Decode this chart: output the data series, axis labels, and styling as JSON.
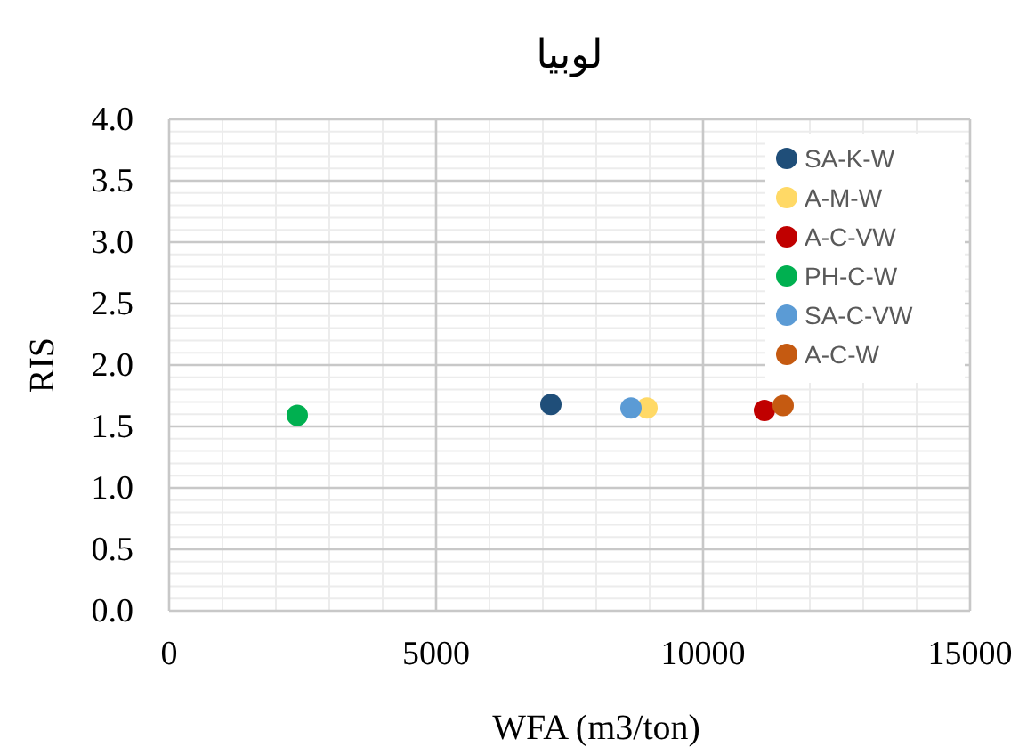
{
  "chart_data": {
    "type": "scatter",
    "title": "لوبيا",
    "xlabel": "WFA (m3/ton)",
    "ylabel": "RIS",
    "xlim": [
      0,
      15000
    ],
    "xticks": [
      0,
      5000,
      10000,
      15000
    ],
    "ylim": [
      0,
      4
    ],
    "yticks": [
      {
        "value": 0,
        "label": "0.0"
      },
      0.5,
      {
        "value": 1,
        "label": "1.0"
      },
      1.5,
      {
        "value": 2,
        "label": "2.0"
      },
      2.5,
      {
        "value": 3,
        "label": "3.0"
      },
      3.5,
      {
        "value": 4,
        "label": "4.0"
      }
    ],
    "grid": true,
    "legend": "top right",
    "marker": "circle",
    "series": [
      {
        "name": "SA-K-W",
        "color": "#1f4e79",
        "x": [
          7150
        ],
        "values": [
          1.68
        ]
      },
      {
        "name": "A-M-W",
        "color": "#ffd966",
        "x": [
          8950
        ],
        "values": [
          1.65
        ]
      },
      {
        "name": "A-C-VW",
        "color": "#c00000",
        "x": [
          11150
        ],
        "values": [
          1.63
        ]
      },
      {
        "name": "PH-C-W",
        "color": "#00b050",
        "x": [
          2400
        ],
        "values": [
          1.59
        ]
      },
      {
        "name": "SA-C-VW",
        "color": "#5b9bd5",
        "x": [
          8650
        ],
        "values": [
          1.65
        ]
      },
      {
        "name": "A-C-W",
        "color": "#c55a11",
        "x": [
          11500
        ],
        "values": [
          1.67
        ]
      }
    ]
  }
}
